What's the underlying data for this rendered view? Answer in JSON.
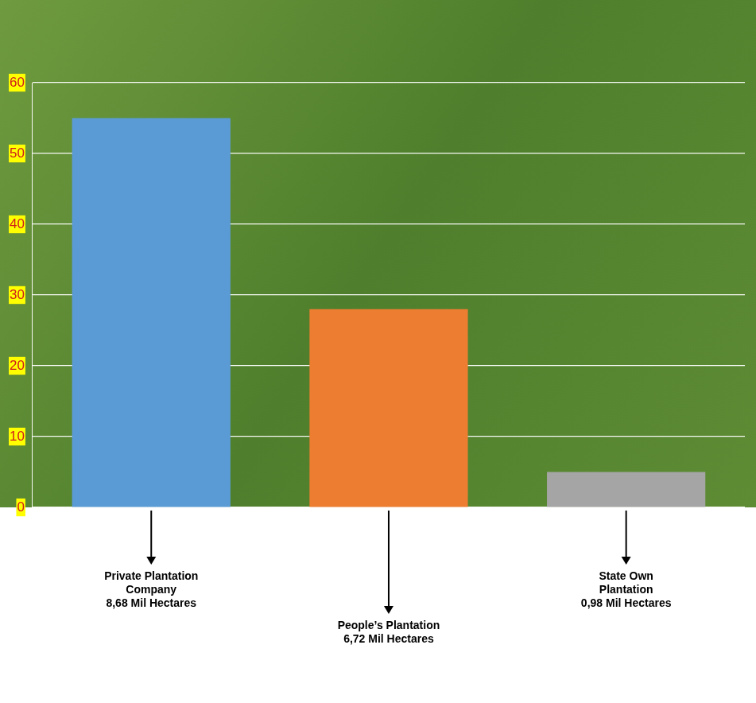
{
  "chart_data": {
    "type": "bar",
    "categories": [
      "Private Plantation Company",
      "People’s Plantation",
      "State Own Plantation"
    ],
    "annotations": [
      "8,68 Mil Hectares",
      "6,72 Mil Hectares",
      "0,98 Mil Hectares"
    ],
    "values": [
      55,
      28,
      5
    ],
    "colors": [
      "#5b9bd5",
      "#ed7d31",
      "#a5a5a5"
    ],
    "ylim": [
      0,
      60
    ],
    "yticks": [
      0,
      10,
      20,
      30,
      40,
      50,
      60
    ],
    "grid": true
  }
}
